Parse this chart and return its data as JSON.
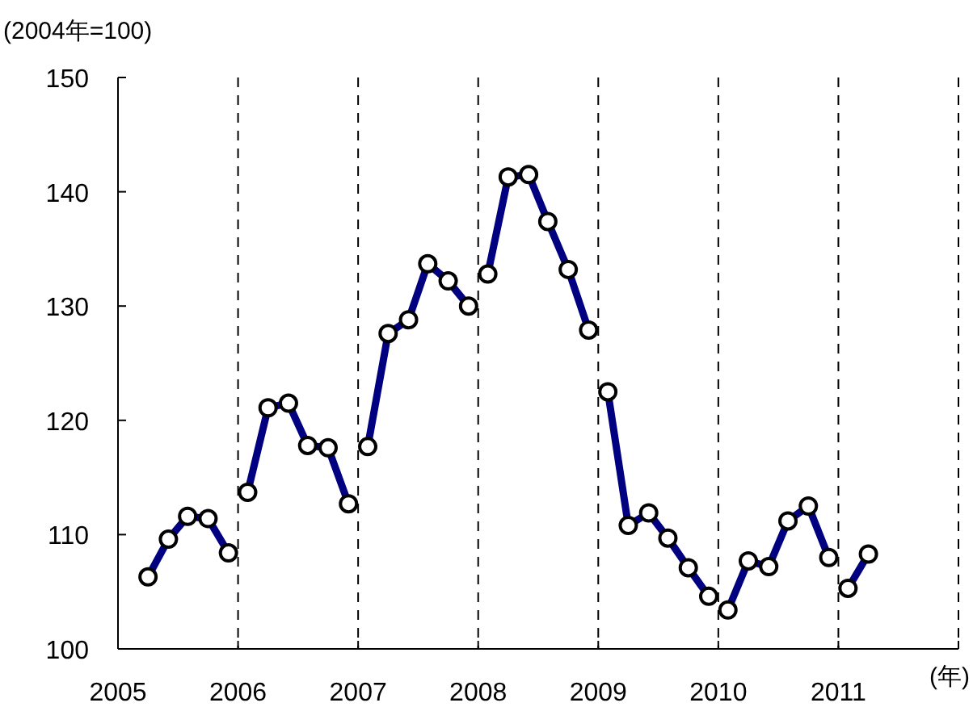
{
  "chart_data": {
    "type": "line",
    "ylabel": "(2004年=100)",
    "xlabel": "(年)",
    "series": [
      {
        "color": "#000080",
        "x": [
          2005.25,
          2005.42,
          2005.58,
          2005.75,
          2005.92
        ],
        "values": [
          106.3,
          109.6,
          111.6,
          111.4,
          108.4
        ]
      },
      {
        "color": "#000080",
        "x": [
          2006.08,
          2006.25,
          2006.42,
          2006.58,
          2006.75,
          2006.92
        ],
        "values": [
          113.7,
          121.1,
          121.5,
          117.8,
          117.6,
          112.7
        ]
      },
      {
        "color": "#000080",
        "x": [
          2007.08,
          2007.25,
          2007.42,
          2007.58,
          2007.75,
          2007.92
        ],
        "values": [
          117.7,
          127.6,
          128.8,
          133.7,
          132.2,
          130.0
        ]
      },
      {
        "color": "#000080",
        "x": [
          2008.08,
          2008.25,
          2008.42,
          2008.58,
          2008.75,
          2008.92
        ],
        "values": [
          132.8,
          141.3,
          141.5,
          137.4,
          133.2,
          127.9
        ]
      },
      {
        "color": "#000080",
        "x": [
          2009.08,
          2009.25,
          2009.42,
          2009.58,
          2009.75,
          2009.92
        ],
        "values": [
          122.5,
          110.8,
          111.9,
          109.7,
          107.1,
          104.6
        ]
      },
      {
        "color": "#000080",
        "x": [
          2010.08,
          2010.25,
          2010.42,
          2010.58,
          2010.75,
          2010.92
        ],
        "values": [
          103.4,
          107.7,
          107.2,
          111.2,
          112.5,
          108.0
        ]
      },
      {
        "color": "#000080",
        "x": [
          2011.08,
          2011.25
        ],
        "values": [
          105.3,
          108.3
        ]
      }
    ],
    "xlim": [
      2005,
      2012
    ],
    "ylim": [
      100,
      150
    ],
    "xticks": [
      2005,
      2006,
      2007,
      2008,
      2009,
      2010,
      2011,
      {
        "value": 2012,
        "label": null
      }
    ],
    "yticks": [
      100,
      110,
      120,
      130,
      140,
      150
    ],
    "grid": "x",
    "marker": "circle",
    "line_style": "solid"
  }
}
